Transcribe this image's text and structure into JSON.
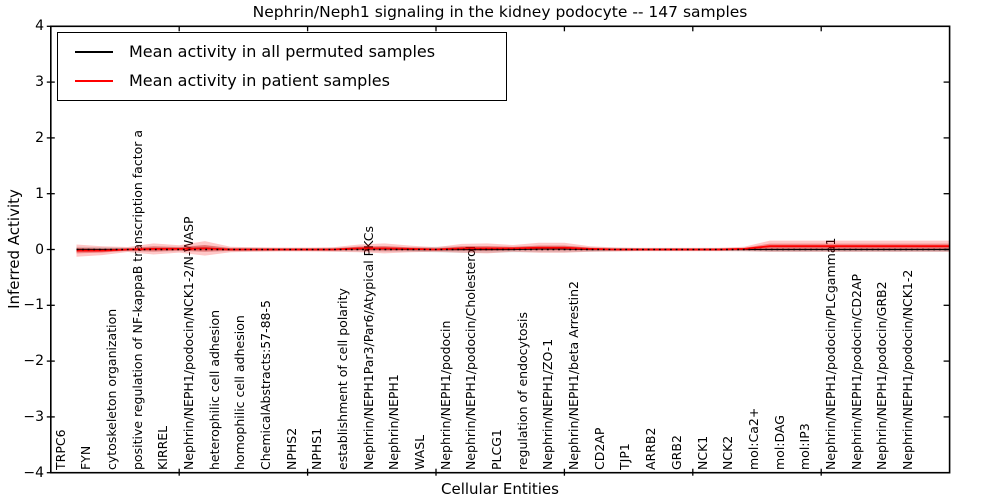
{
  "figure": {
    "title": "Nephrin/Neph1 signaling in the kidney podocyte -- 147 samples",
    "xlabel": "Cellular Entities",
    "ylabel": "Inferred Activity"
  },
  "legend": {
    "items": [
      {
        "label": "Mean activity in all permuted samples",
        "color": "#000000"
      },
      {
        "label": "Mean activity in patient samples",
        "color": "#ff0000"
      }
    ]
  },
  "chart_data": {
    "type": "line",
    "title": "Nephrin/Neph1 signaling in the kidney podocyte -- 147 samples",
    "xlabel": "Cellular Entities",
    "ylabel": "Inferred Activity",
    "xlim": [
      0,
      35
    ],
    "ylim": [
      -4,
      4
    ],
    "grid": false,
    "legend_position": "upper left",
    "zero_line_style": "dotted",
    "xticks": [
      5,
      10,
      15,
      20,
      25,
      30
    ],
    "yticks": [
      {
        "v": 4,
        "label": "4"
      },
      {
        "v": 3,
        "label": "3"
      },
      {
        "v": 2,
        "label": "2"
      },
      {
        "v": 1,
        "label": "1"
      },
      {
        "v": 0,
        "label": "0"
      },
      {
        "v": -1,
        "label": "−1"
      },
      {
        "v": -2,
        "label": "−2"
      },
      {
        "v": -3,
        "label": "−3"
      },
      {
        "v": -4,
        "label": "−4"
      }
    ],
    "categories": [
      "TRPC6",
      "FYN",
      "cytoskeleton organization",
      "positive regulation of NF-kappaB transcription factor a",
      "KIRREL",
      "Nephrin/NEPH1/podocin/NCK1-2/N-WASP",
      "heterophilic cell adhesion",
      "homophilic cell adhesion",
      "ChemicalAbstracts:57-88-5",
      "NPHS2",
      "NPHS1",
      "establishment of cell polarity",
      "Nephrin/NEPH1Par3/Par6/Atypical PKCs",
      "Nephrin/NEPH1",
      "WASL",
      "Nephrin/NEPH1/podocin",
      "Nephrin/NEPH1/podocin/Cholesterol",
      "PLCG1",
      "regulation of endocytosis",
      "Nephrin/NEPH1/ZO-1",
      "Nephrin/NEPH1/beta Arrestin2",
      "CD2AP",
      "TJP1",
      "ARRB2",
      "GRB2",
      "NCK1",
      "NCK2",
      "mol:Ca2+",
      "mol:DAG",
      "mol:IP3",
      "Nephrin/NEPH1/podocin/PLCgamma1",
      "Nephrin/NEPH1/podocin/CD2AP",
      "Nephrin/NEPH1/podocin/GRB2",
      "Nephrin/NEPH1/podocin/NCK1-2"
    ],
    "series": [
      {
        "name": "Mean activity in all permuted samples",
        "color": "#000000",
        "line_width": 1.3,
        "band_color_outer": "rgba(0,0,0,0.13)",
        "band_color_inner": "rgba(0,0,0,0.10)",
        "values": [
          0,
          0,
          0,
          0.01,
          0.01,
          0.02,
          0,
          0,
          0,
          0,
          0,
          0.01,
          0.01,
          0,
          0,
          0,
          0,
          0,
          0.01,
          0.01,
          0,
          0,
          0,
          0,
          0,
          0,
          0,
          0,
          0,
          0,
          0,
          0,
          0,
          0
        ],
        "band_halfwidth": [
          0.05,
          0.04,
          0.03,
          0.05,
          0.04,
          0.06,
          0.03,
          0.03,
          0.025,
          0.025,
          0.03,
          0.045,
          0.05,
          0.04,
          0.05,
          0.06,
          0.06,
          0.05,
          0.06,
          0.06,
          0.04,
          0.03,
          0.025,
          0.025,
          0.025,
          0.025,
          0.03,
          0.045,
          0.045,
          0.045,
          0.045,
          0.045,
          0.045,
          0.045
        ]
      },
      {
        "name": "Mean activity in patient samples",
        "color": "#ff0000",
        "line_width": 1.8,
        "band_color_outer": "rgba(255,0,0,0.22)",
        "band_color_inner": "rgba(225,0,0,0.33)",
        "values": [
          -0.02,
          -0.02,
          0,
          0.01,
          0.01,
          0.02,
          0,
          0,
          0,
          0,
          0,
          0.02,
          0.02,
          0.01,
          0,
          0.02,
          0.02,
          0.02,
          0.03,
          0.03,
          0.01,
          0,
          0,
          0,
          0,
          0,
          0.01,
          0.06,
          0.06,
          0.06,
          0.06,
          0.06,
          0.06,
          0.06
        ],
        "band_halfwidth": [
          0.11,
          0.08,
          0.045,
          0.1,
          0.065,
          0.13,
          0.05,
          0.04,
          0.035,
          0.035,
          0.04,
          0.07,
          0.09,
          0.06,
          0.04,
          0.08,
          0.09,
          0.06,
          0.09,
          0.09,
          0.05,
          0.035,
          0.03,
          0.03,
          0.03,
          0.03,
          0.04,
          0.1,
          0.1,
          0.1,
          0.1,
          0.1,
          0.1,
          0.1
        ]
      }
    ]
  }
}
